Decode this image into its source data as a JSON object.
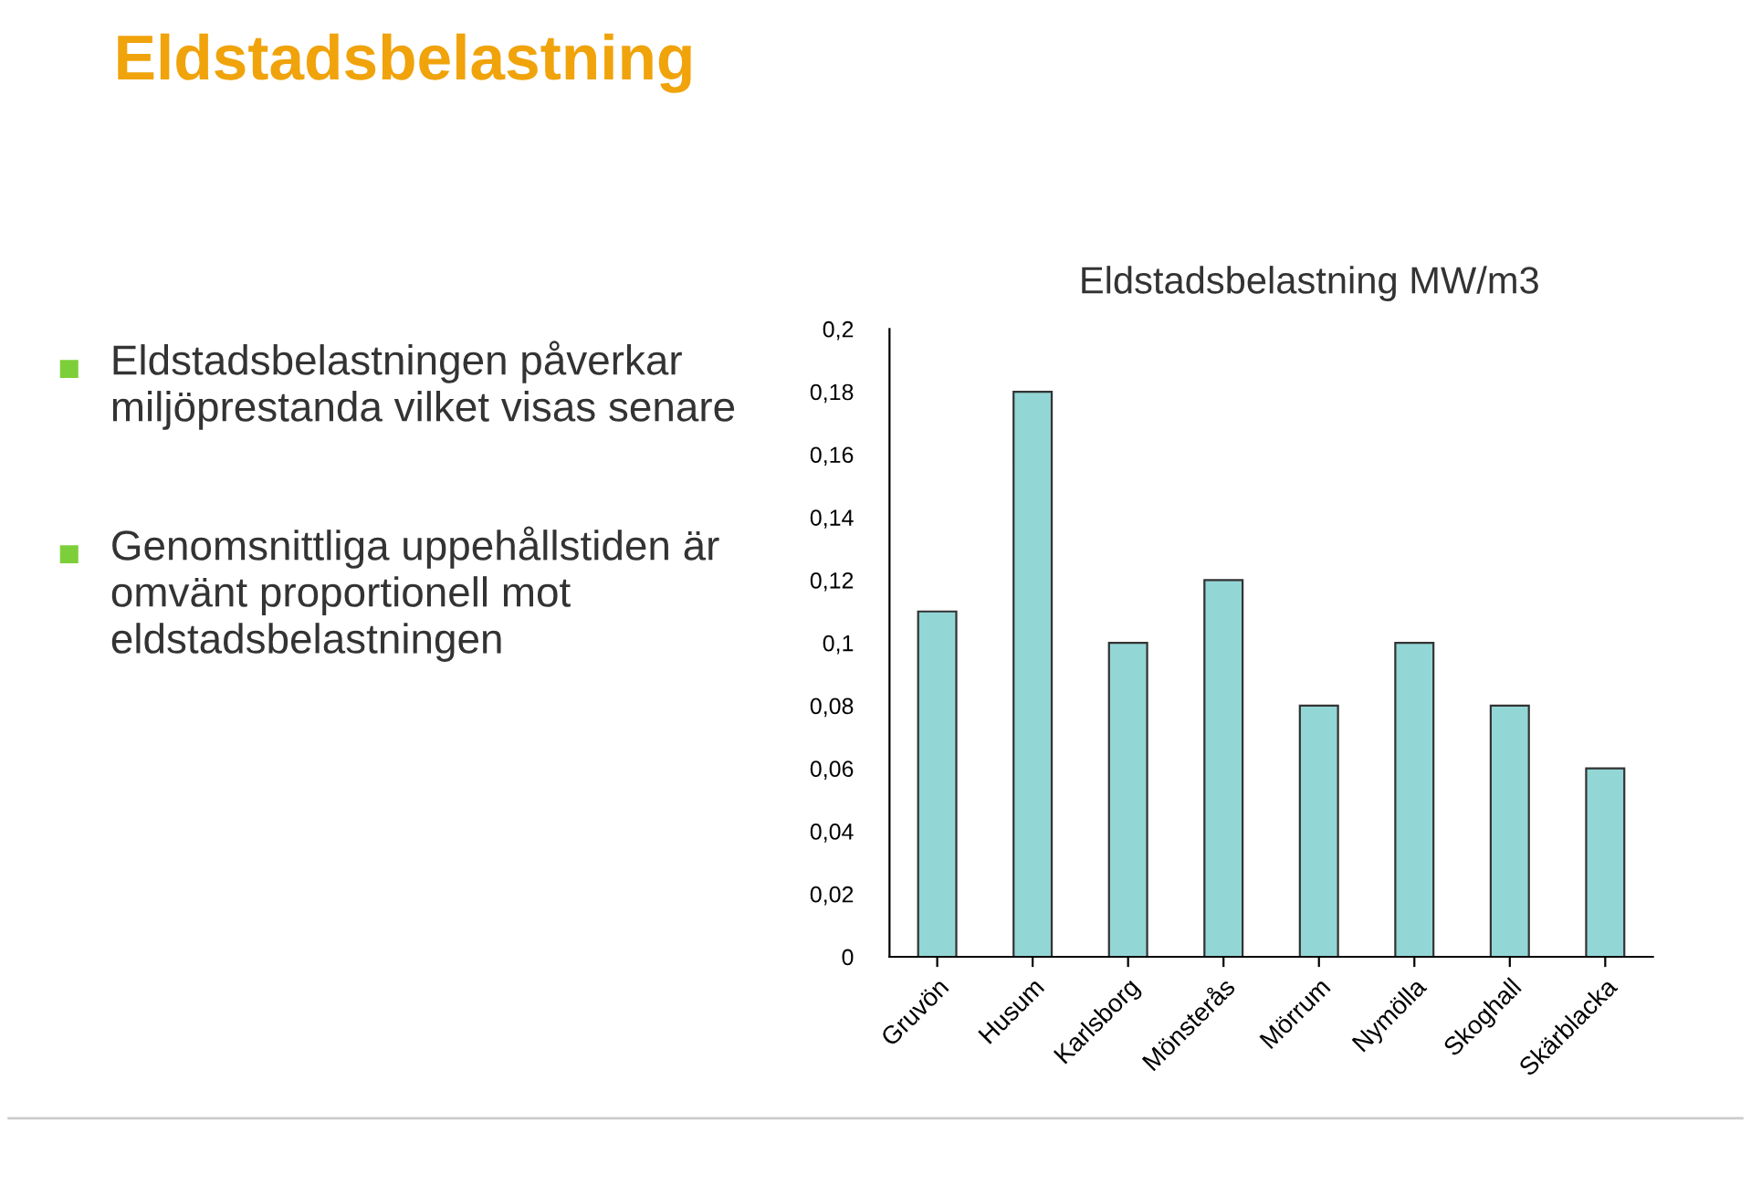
{
  "chart_data": {
    "type": "bar",
    "title": "Eldstadsbelastning",
    "subtitle": "Eldstadsbelastning MW/m3",
    "annotations": [
      "Eldstadsbelastningen påverkar miljöprestanda vilket visas senare",
      "Genomsnittliga uppehållstiden är omvänt proportionell mot eldstadsbelastningen"
    ],
    "categories": [
      "Gruvön",
      "Husum",
      "Karlsborg",
      "Mönsterås",
      "Mörrum",
      "Nymölla",
      "Skoghall",
      "Skärblacka"
    ],
    "values": [
      0.11,
      0.18,
      0.1,
      0.12,
      0.08,
      0.1,
      0.08,
      0.06
    ],
    "color": "#93d6d6",
    "ylim": [
      0,
      0.2
    ],
    "yticks": [
      {
        "value": 0,
        "label": "0"
      },
      {
        "value": 0.02,
        "label": "0,02"
      },
      {
        "value": 0.04,
        "label": "0,04"
      },
      {
        "value": 0.06,
        "label": "0,06"
      },
      {
        "value": 0.08,
        "label": "0,08"
      },
      {
        "value": 0.1,
        "label": "0,1"
      },
      {
        "value": 0.12,
        "label": "0,12"
      },
      {
        "value": 0.14,
        "label": "0,14"
      },
      {
        "value": 0.16,
        "label": "0,16"
      },
      {
        "value": 0.18,
        "label": "0,18"
      },
      {
        "value": 0.2,
        "label": "0,2"
      }
    ],
    "grid": false,
    "legend": false
  }
}
